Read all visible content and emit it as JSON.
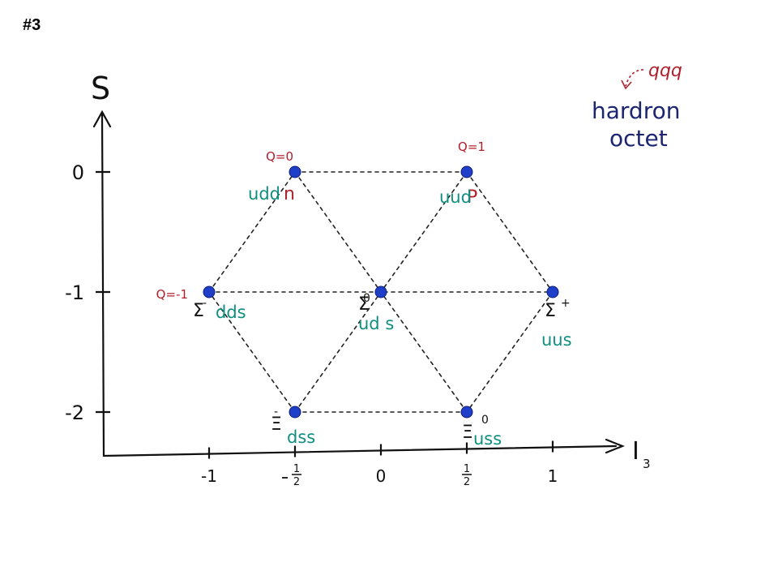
{
  "slide": {
    "number": "#3"
  },
  "colors": {
    "axis": "#111111",
    "point": "#1f3fc8",
    "charge_label": "#b0202c",
    "quark_label": "#0f8f7f",
    "particle_label": "#111111",
    "title_text": "#1c2670",
    "title_arrow": "#b0202c"
  },
  "axes": {
    "y_label": "S",
    "x_label": "I",
    "x_label_subscript": "3",
    "y_ticks": [
      {
        "value": 0,
        "label": "0"
      },
      {
        "value": -1,
        "label": "-1"
      },
      {
        "value": -2,
        "label": "-2"
      }
    ],
    "x_ticks": [
      {
        "value": -1,
        "label": "-1"
      },
      {
        "value": -0.5,
        "label": "-1/2"
      },
      {
        "value": 0,
        "label": "0"
      },
      {
        "value": 0.5,
        "label": "1/2"
      },
      {
        "value": 1,
        "label": "1"
      }
    ]
  },
  "title": {
    "quark_content": "qqq",
    "line1": "hardron",
    "line2": "octet"
  },
  "particles": [
    {
      "id": "n",
      "name": "n",
      "superscript": "",
      "quarks": "udd",
      "charge": "Q=0",
      "I3": -0.5,
      "S": 0
    },
    {
      "id": "p",
      "name": "P",
      "superscript": "",
      "quarks": "uud",
      "charge": "Q=1",
      "I3": 0.5,
      "S": 0
    },
    {
      "id": "sigma-minus",
      "name": "Σ",
      "superscript": "-",
      "quarks": "dds",
      "charge": "Q=-1",
      "I3": -1,
      "S": -1
    },
    {
      "id": "sigma-zero",
      "name": "Σ",
      "superscript": "0",
      "quarks": "ud s",
      "charge": "",
      "I3": 0,
      "S": -1
    },
    {
      "id": "sigma-plus",
      "name": "Σ",
      "superscript": "+",
      "quarks": "uus",
      "charge": "",
      "I3": 1,
      "S": -1
    },
    {
      "id": "xi-minus",
      "name": "Ξ",
      "superscript": "-",
      "quarks": "dss",
      "charge": "",
      "I3": -0.5,
      "S": -2
    },
    {
      "id": "xi-zero",
      "name": "Ξ",
      "superscript": "0",
      "quarks": "uss",
      "charge": "",
      "I3": 0.5,
      "S": -2
    }
  ],
  "connections": [
    [
      "n",
      "p"
    ],
    [
      "p",
      "sigma-plus"
    ],
    [
      "sigma-plus",
      "xi-zero"
    ],
    [
      "xi-zero",
      "xi-minus"
    ],
    [
      "xi-minus",
      "sigma-minus"
    ],
    [
      "sigma-minus",
      "n"
    ],
    [
      "sigma-minus",
      "sigma-plus"
    ],
    [
      "n",
      "xi-zero"
    ],
    [
      "p",
      "xi-minus"
    ]
  ]
}
